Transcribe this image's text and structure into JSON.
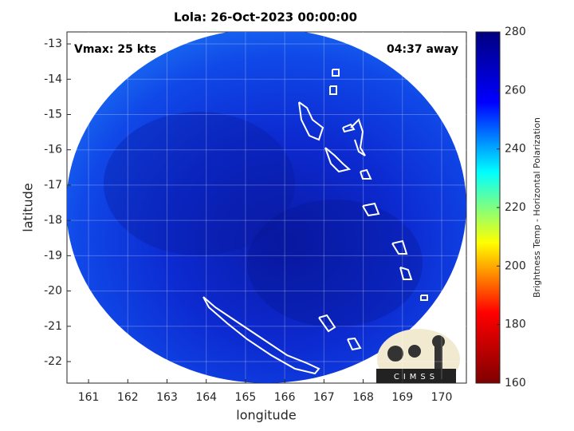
{
  "map": {
    "title": "Lola: 26-Oct-2023 00:00:00",
    "annotations": {
      "left": "Vmax: 25 kts",
      "right": "04:37 away"
    },
    "xlabel": "longitude",
    "ylabel": "latitude",
    "xlim": [
      160.45,
      170.63
    ],
    "xticks": [
      161,
      162,
      163,
      164,
      165,
      166,
      167,
      168,
      169,
      170
    ],
    "ylim": [
      -22.61,
      -12.66
    ],
    "yticks": [
      -13,
      -14,
      -15,
      -16,
      -17,
      -18,
      -19,
      -20,
      -21,
      -22
    ],
    "grid": true,
    "colorbar": {
      "label": "Brightness Temp - Horizontal Polarization",
      "colormap": "jet",
      "lim": [
        160,
        280
      ],
      "ticks": [
        160,
        180,
        200,
        220,
        240,
        260,
        280
      ]
    },
    "logo": "CIMSS"
  }
}
